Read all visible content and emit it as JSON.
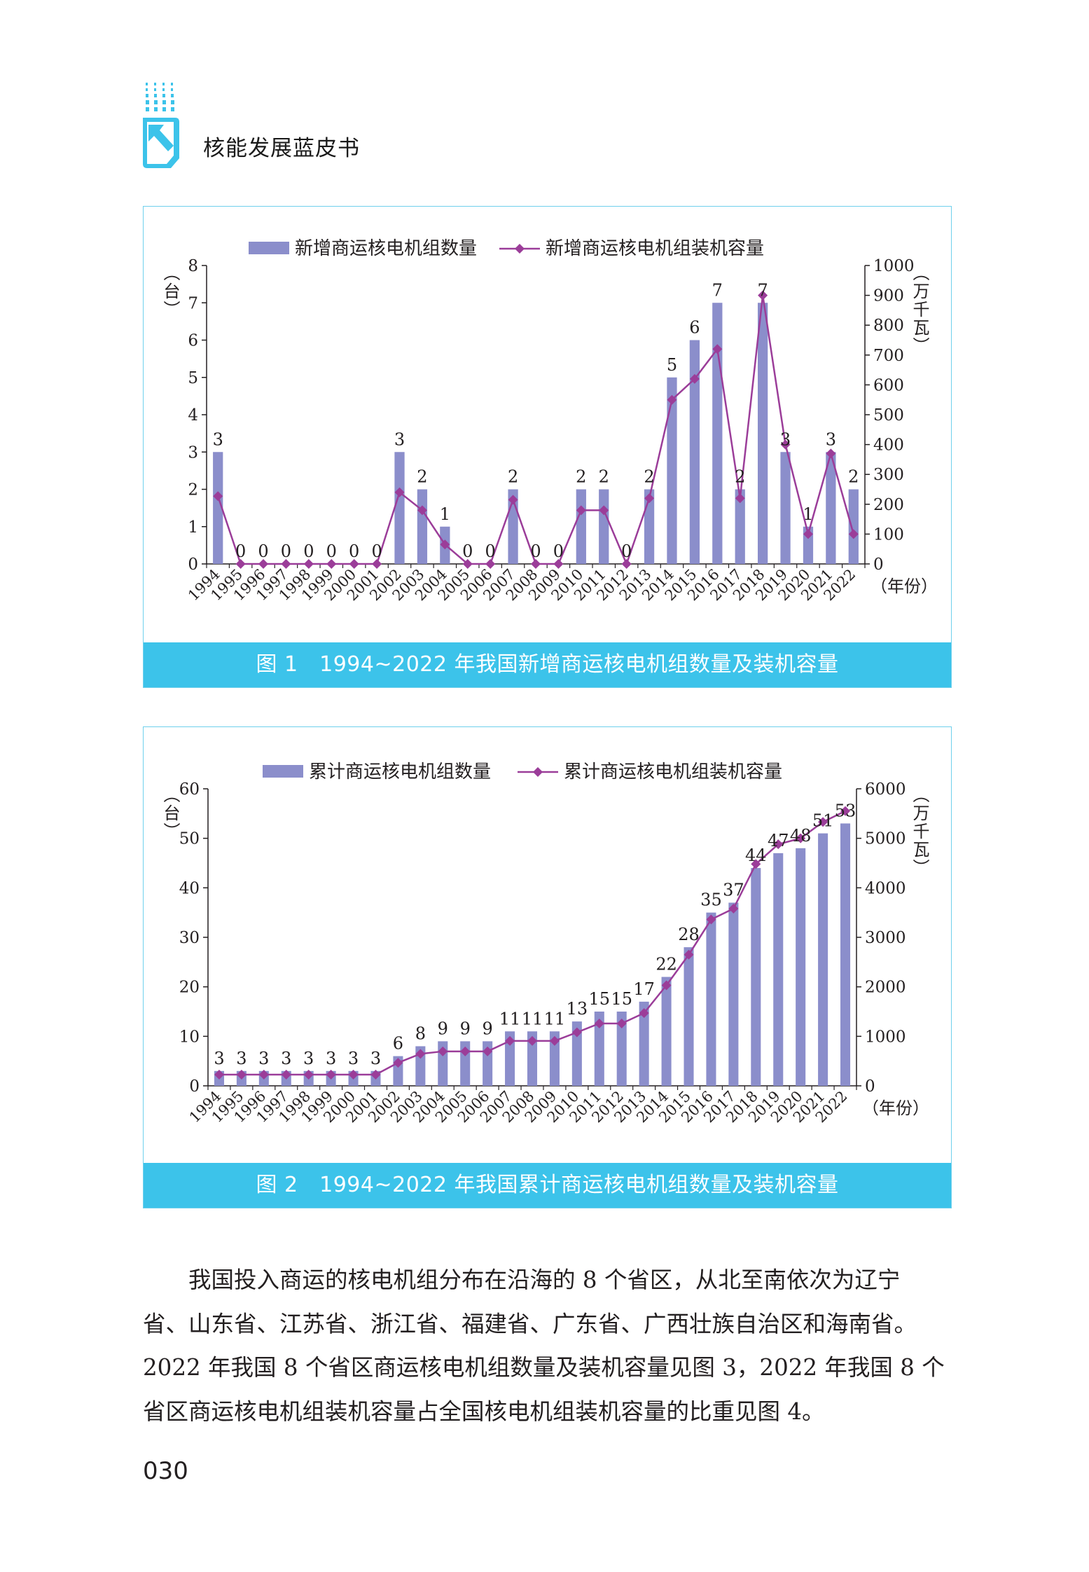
{
  "header": {
    "title": "核能发展蓝皮书",
    "logo_icon": "arrow-page-logo-icon"
  },
  "figure1": {
    "caption": "图 1　1994~2022 年我国新增商运核电机组数量及装机容量",
    "chart_data": {
      "type": "bar",
      "categories": [
        "1994",
        "1995",
        "1996",
        "1997",
        "1998",
        "1999",
        "2000",
        "2001",
        "2002",
        "2003",
        "2004",
        "2005",
        "2006",
        "2007",
        "2008",
        "2009",
        "2010",
        "2011",
        "2012",
        "2013",
        "2014",
        "2015",
        "2016",
        "2017",
        "2018",
        "2019",
        "2020",
        "2021",
        "2022"
      ],
      "series": [
        {
          "name": "新增商运核电机组数量",
          "type": "bar",
          "axis": "left",
          "values": [
            3,
            0,
            0,
            0,
            0,
            0,
            0,
            0,
            3,
            2,
            1,
            0,
            0,
            2,
            0,
            0,
            2,
            2,
            0,
            2,
            5,
            6,
            7,
            2,
            7,
            3,
            1,
            3,
            2
          ]
        },
        {
          "name": "新增商运核电机组装机容量",
          "type": "line",
          "axis": "right",
          "values": [
            227,
            0,
            0,
            0,
            0,
            0,
            0,
            0,
            240,
            180,
            65,
            0,
            0,
            215,
            0,
            0,
            180,
            180,
            0,
            220,
            550,
            620,
            720,
            220,
            900,
            400,
            100,
            370,
            100
          ]
        }
      ],
      "data_labels": [
        "3",
        "0",
        "0",
        "0",
        "0",
        "0",
        "0",
        "0",
        "3",
        "2",
        "1",
        "0",
        "0",
        "2",
        "0",
        "0",
        "2",
        "2",
        "0",
        "2",
        "5",
        "6",
        "7",
        "2",
        "7",
        "3",
        "1",
        "3",
        "2"
      ],
      "ylabel_left": "（台）",
      "ylabel_right": "（万千瓦）",
      "xlabel": "（年份）",
      "ylim_left": [
        0,
        8
      ],
      "ylim_right": [
        0,
        1000
      ],
      "yticks_left": [
        "0",
        "1",
        "2",
        "3",
        "4",
        "5",
        "6",
        "7",
        "8"
      ],
      "yticks_right": [
        "0",
        "100",
        "200",
        "300",
        "400",
        "500",
        "600",
        "700",
        "800",
        "900",
        "1000"
      ],
      "legend_position": "top",
      "grid": false,
      "colors": {
        "bar": "#8b8ecb",
        "line": "#9b3d99"
      }
    }
  },
  "figure2": {
    "caption": "图 2　1994~2022 年我国累计商运核电机组数量及装机容量",
    "chart_data": {
      "type": "bar",
      "categories": [
        "1994",
        "1995",
        "1996",
        "1997",
        "1998",
        "1999",
        "2000",
        "2001",
        "2002",
        "2003",
        "2004",
        "2005",
        "2006",
        "2007",
        "2008",
        "2009",
        "2010",
        "2011",
        "2012",
        "2013",
        "2014",
        "2015",
        "2016",
        "2017",
        "2018",
        "2019",
        "2020",
        "2021",
        "2022"
      ],
      "series": [
        {
          "name": "累计商运核电机组数量",
          "type": "bar",
          "axis": "left",
          "values": [
            3,
            3,
            3,
            3,
            3,
            3,
            3,
            3,
            6,
            8,
            9,
            9,
            9,
            11,
            11,
            11,
            13,
            15,
            15,
            17,
            22,
            28,
            35,
            37,
            44,
            47,
            48,
            51,
            53
          ]
        },
        {
          "name": "累计商运核电机组装机容量",
          "type": "line",
          "axis": "right",
          "values": [
            227,
            227,
            227,
            227,
            227,
            227,
            227,
            227,
            466,
            646,
            696,
            696,
            696,
            907,
            907,
            907,
            1080,
            1260,
            1260,
            1470,
            2030,
            2650,
            3360,
            3580,
            4480,
            4880,
            5000,
            5330,
            5550
          ]
        }
      ],
      "data_labels": [
        "3",
        "3",
        "3",
        "3",
        "3",
        "3",
        "3",
        "3",
        "6",
        "8",
        "9",
        "9",
        "9",
        "11",
        "11",
        "11",
        "13",
        "15",
        "15",
        "17",
        "22",
        "28",
        "35",
        "37",
        "44",
        "47",
        "48",
        "51",
        "53"
      ],
      "ylabel_left": "（台）",
      "ylabel_right": "（万千瓦）",
      "xlabel": "（年份）",
      "ylim_left": [
        0,
        60
      ],
      "ylim_right": [
        0,
        6000
      ],
      "yticks_left": [
        "0",
        "10",
        "20",
        "30",
        "40",
        "50",
        "60"
      ],
      "yticks_right": [
        "0",
        "1000",
        "2000",
        "3000",
        "4000",
        "5000",
        "6000"
      ],
      "legend_position": "top",
      "grid": false,
      "colors": {
        "bar": "#8b8ecb",
        "line": "#9b3d99"
      }
    }
  },
  "body": {
    "lines": [
      "　　我国投入商运的核电机组分布在沿海的 8 个省区，从北至南依次为辽宁",
      "省、山东省、江苏省、浙江省、福建省、广东省、广西壮族自治区和海南省。",
      "2022 年我国 8 个省区商运核电机组数量及装机容量见图 3，2022 年我国 8 个",
      "省区商运核电机组装机容量占全国核电机组装机容量的比重见图 4。"
    ]
  },
  "page_number": "030"
}
